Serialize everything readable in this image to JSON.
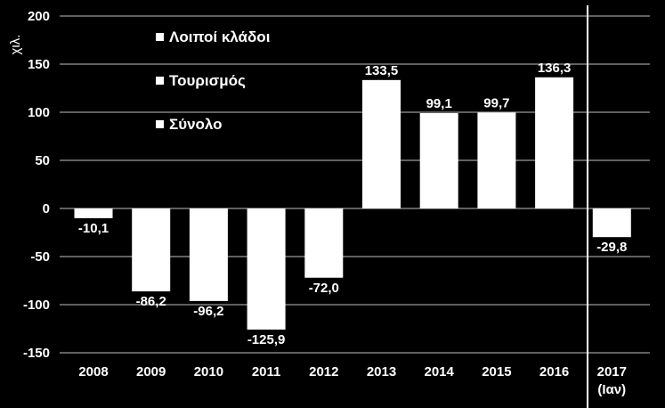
{
  "chart_data": {
    "type": "bar",
    "ylabel": "χιλ.",
    "categories": [
      "2008",
      "2009",
      "2010",
      "2011",
      "2012",
      "2013",
      "2014",
      "2015",
      "2016",
      "2017\n(Ιαν)"
    ],
    "values": [
      -10.1,
      -86.2,
      -96.2,
      -125.9,
      -72.0,
      133.5,
      99.1,
      99.7,
      136.3,
      -29.8
    ],
    "value_labels": [
      "-10,1",
      "-86,2",
      "-96,2",
      "-125,9",
      "-72,0",
      "133,5",
      "99,1",
      "99,7",
      "136,3",
      "-29,8"
    ],
    "ylim": [
      -150,
      200
    ],
    "yticks": [
      200,
      150,
      100,
      50,
      0,
      -50,
      -100,
      -150
    ],
    "ytick_labels": [
      "200",
      "150",
      "100",
      "50",
      "0",
      "-50",
      "-100",
      "-150"
    ],
    "grid": true,
    "legend": [
      "Λοιποί κλάδοι",
      "Τουρισμός",
      "Σύνολο"
    ],
    "legend_position": "top-left",
    "colors": {
      "background": "#000000",
      "bar": "#ffffff",
      "grid": "#9a9a9a",
      "text": "#ffffff"
    }
  }
}
